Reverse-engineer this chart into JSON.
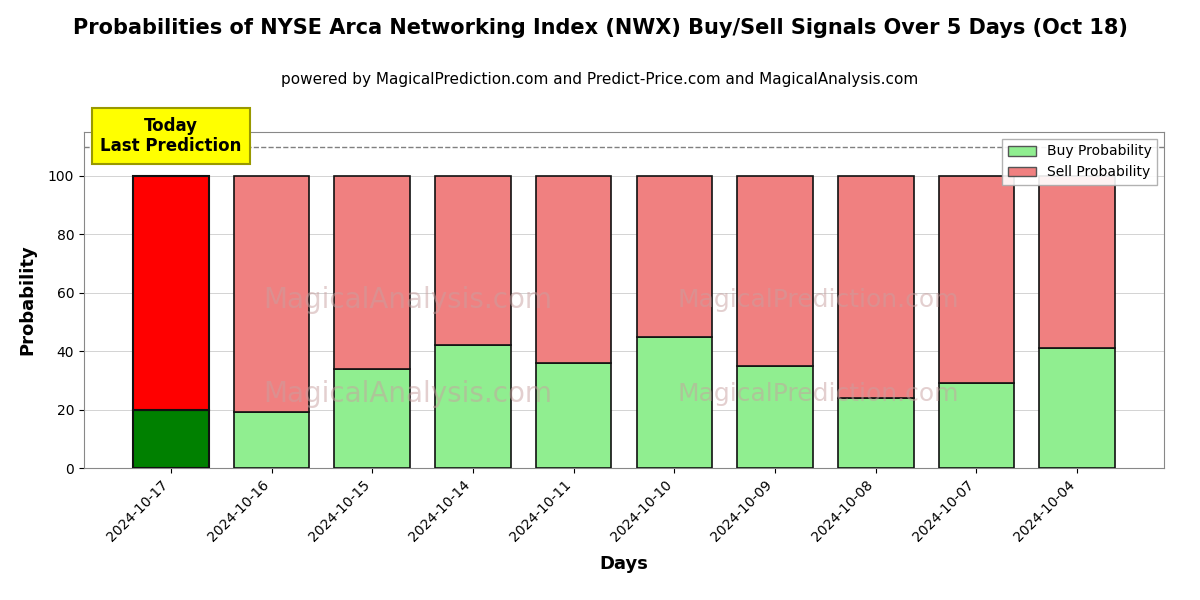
{
  "title": "Probabilities of NYSE Arca Networking Index (NWX) Buy/Sell Signals Over 5 Days (Oct 18)",
  "subtitle": "powered by MagicalPrediction.com and Predict-Price.com and MagicalAnalysis.com",
  "xlabel": "Days",
  "ylabel": "Probability",
  "categories": [
    "2024-10-17",
    "2024-10-16",
    "2024-10-15",
    "2024-10-14",
    "2024-10-11",
    "2024-10-10",
    "2024-10-09",
    "2024-10-08",
    "2024-10-07",
    "2024-10-04"
  ],
  "buy_values": [
    20,
    19,
    34,
    42,
    36,
    45,
    35,
    24,
    29,
    41
  ],
  "sell_values": [
    80,
    81,
    66,
    58,
    64,
    55,
    65,
    76,
    71,
    59
  ],
  "today_bar_buy_color": "#008000",
  "today_bar_sell_color": "#ff0000",
  "normal_bar_buy_color": "#90ee90",
  "normal_bar_sell_color": "#f08080",
  "today_annotation_bg": "#ffff00",
  "today_annotation_text": "Today\nLast Prediction",
  "ylim": [
    0,
    115
  ],
  "yticks": [
    0,
    20,
    40,
    60,
    80,
    100
  ],
  "dashed_line_y": 110,
  "legend_buy_color": "#90ee90",
  "legend_sell_color": "#f08080",
  "title_fontsize": 15,
  "subtitle_fontsize": 11,
  "axis_label_fontsize": 13,
  "tick_fontsize": 10,
  "bar_width": 0.75,
  "bar_edge_color": "#111111",
  "bar_linewidth": 1.2
}
